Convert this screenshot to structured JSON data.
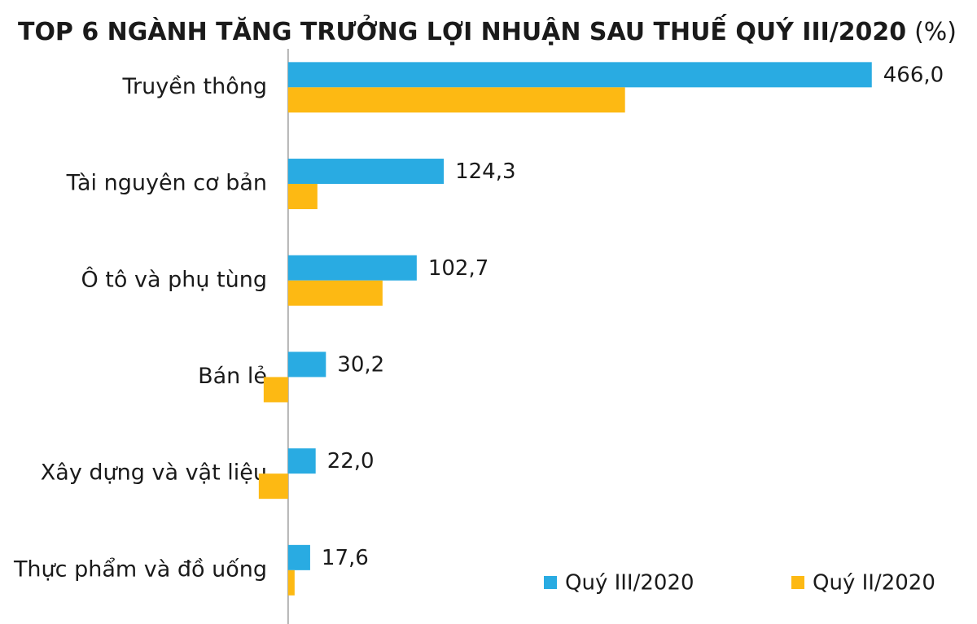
{
  "chart_data": {
    "type": "hbar",
    "title": "TOP 6 NGÀNH TĂNG TRƯỞNG LỢI NHUẬN SAU THUẾ QUÝ III/2020",
    "title_unit": "(%)",
    "categories": [
      "Truyền thông",
      "Tài nguyên cơ bản",
      "Ô tô và phụ tùng",
      "Bán lẻ",
      "Xây dựng và vật liệu",
      "Thực phẩm và đồ uống"
    ],
    "series": [
      {
        "name": "Quý III/2020",
        "color": "#29abe2",
        "values": [
          466.0,
          124.3,
          102.7,
          30.2,
          22.0,
          17.6
        ],
        "value_labels": [
          "466,0",
          "124,3",
          "102,7",
          "30,2",
          "22,0",
          "17,6"
        ]
      },
      {
        "name": "Quý II/2020",
        "color": "#fdb913",
        "values": [
          269,
          23.4,
          75.4,
          -19.5,
          -23.4,
          5.2
        ]
      }
    ],
    "xlim": [
      -230,
      550
    ],
    "legend": "bottom-right"
  }
}
